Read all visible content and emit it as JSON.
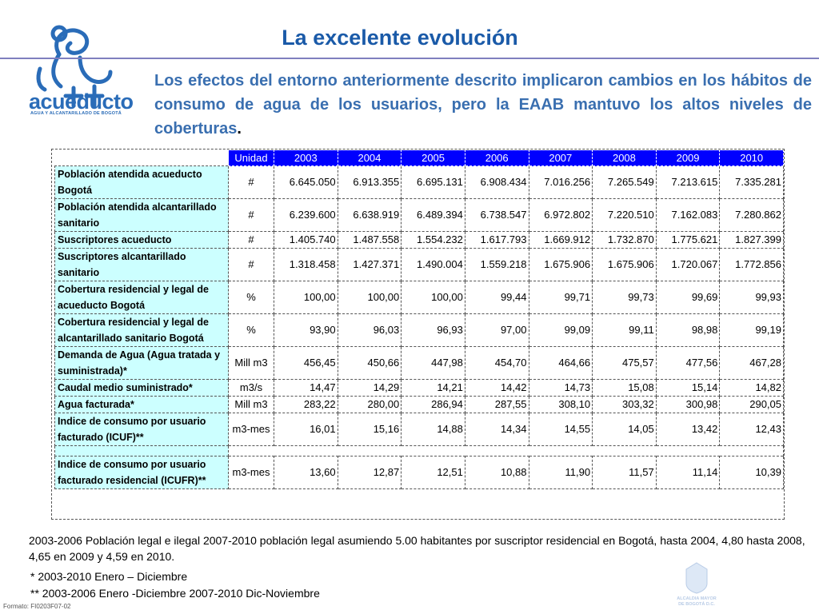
{
  "logo": {
    "word": "acueducto",
    "sub": "AGUA Y ALCANTARILLADO DE BOGOTÁ"
  },
  "title": "La excelente evolución",
  "intro": "Los efectos del entorno anteriormente descrito implicaron cambios en los hábitos de consumo de agua de los usuarios, pero la EAAB mantuvo los altos niveles de coberturas",
  "intro_dot": ".",
  "table": {
    "headers": [
      "Unidad",
      "2003",
      "2004",
      "2005",
      "2006",
      "2007",
      "2008",
      "2009",
      "2010"
    ],
    "rows": [
      {
        "label": "Población atendida acueducto Bogotá",
        "unit": "#",
        "values": [
          "6.645.050",
          "6.913.355",
          "6.695.131",
          "6.908.434",
          "7.016.256",
          "7.265.549",
          "7.213.615",
          "7.335.281"
        ]
      },
      {
        "label": "Población atendida alcantarillado sanitario",
        "unit": "#",
        "values": [
          "6.239.600",
          "6.638.919",
          "6.489.394",
          "6.738.547",
          "6.972.802",
          "7.220.510",
          "7.162.083",
          "7.280.862"
        ]
      },
      {
        "label": "Suscriptores acueducto",
        "unit": "#",
        "values": [
          "1.405.740",
          "1.487.558",
          "1.554.232",
          "1.617.793",
          "1.669.912",
          "1.732.870",
          "1.775.621",
          "1.827.399"
        ]
      },
      {
        "label": "Suscriptores alcantarillado sanitario",
        "unit": "#",
        "values": [
          "1.318.458",
          "1.427.371",
          "1.490.004",
          "1.559.218",
          "1.675.906",
          "1.675.906",
          "1.720.067",
          "1.772.856"
        ]
      },
      {
        "label": "Cobertura residencial y legal de acueducto Bogotá",
        "unit": "%",
        "values": [
          "100,00",
          "100,00",
          "100,00",
          "99,44",
          "99,71",
          "99,73",
          "99,69",
          "99,93"
        ]
      },
      {
        "label": "Cobertura residencial y legal de alcantarillado sanitario Bogotá",
        "unit": "%",
        "values": [
          "93,90",
          "96,03",
          "96,93",
          "97,00",
          "99,09",
          "99,11",
          "98,98",
          "99,19"
        ]
      },
      {
        "label": "Demanda de Agua (Agua tratada y suministrada)*",
        "unit": "Mill m3",
        "values": [
          "456,45",
          "450,66",
          "447,98",
          "454,70",
          "464,66",
          "475,57",
          "477,56",
          "467,28"
        ]
      },
      {
        "label": "Caudal medio suministrado*",
        "unit": "m3/s",
        "values": [
          "14,47",
          "14,29",
          "14,21",
          "14,42",
          "14,73",
          "15,08",
          "15,14",
          "14,82"
        ]
      },
      {
        "label": "Agua facturada*",
        "unit": "Mill m3",
        "values": [
          "283,22",
          "280,00",
          "286,94",
          "287,55",
          "308,10",
          "303,32",
          "300,98",
          "290,05"
        ]
      },
      {
        "label": "Indice de consumo por usuario facturado (ICUF)**",
        "unit": "m3-mes",
        "values": [
          "16,01",
          "15,16",
          "14,88",
          "14,34",
          "14,55",
          "14,05",
          "13,42",
          "12,43"
        ]
      },
      {
        "label": "Indice de consumo por usuario facturado residencial (ICUFR)**",
        "unit": "m3-mes",
        "values": [
          "13,60",
          "12,87",
          "12,51",
          "10,88",
          "11,90",
          "11,57",
          "11,14",
          "10,39"
        ]
      }
    ]
  },
  "notes": "2003-2006 Población legal e ilegal   2007-2010 población legal asumiendo  5.00 habitantes por suscriptor residencial en Bogotá, hasta 2004, 4,80 hasta 2008, 4,65 en 2009 y 4,59 en 2010.",
  "footnote1": "*  2003-2010 Enero – Diciembre",
  "footnote2": "** 2003-2006 Enero -Diciembre     2007-2010  Dic-Noviembre",
  "formato": "Formato: FI0203F07-02",
  "emblem": {
    "line1": "ALCALDIA MAYOR",
    "line2": "DE BOGOTÁ D.C."
  }
}
